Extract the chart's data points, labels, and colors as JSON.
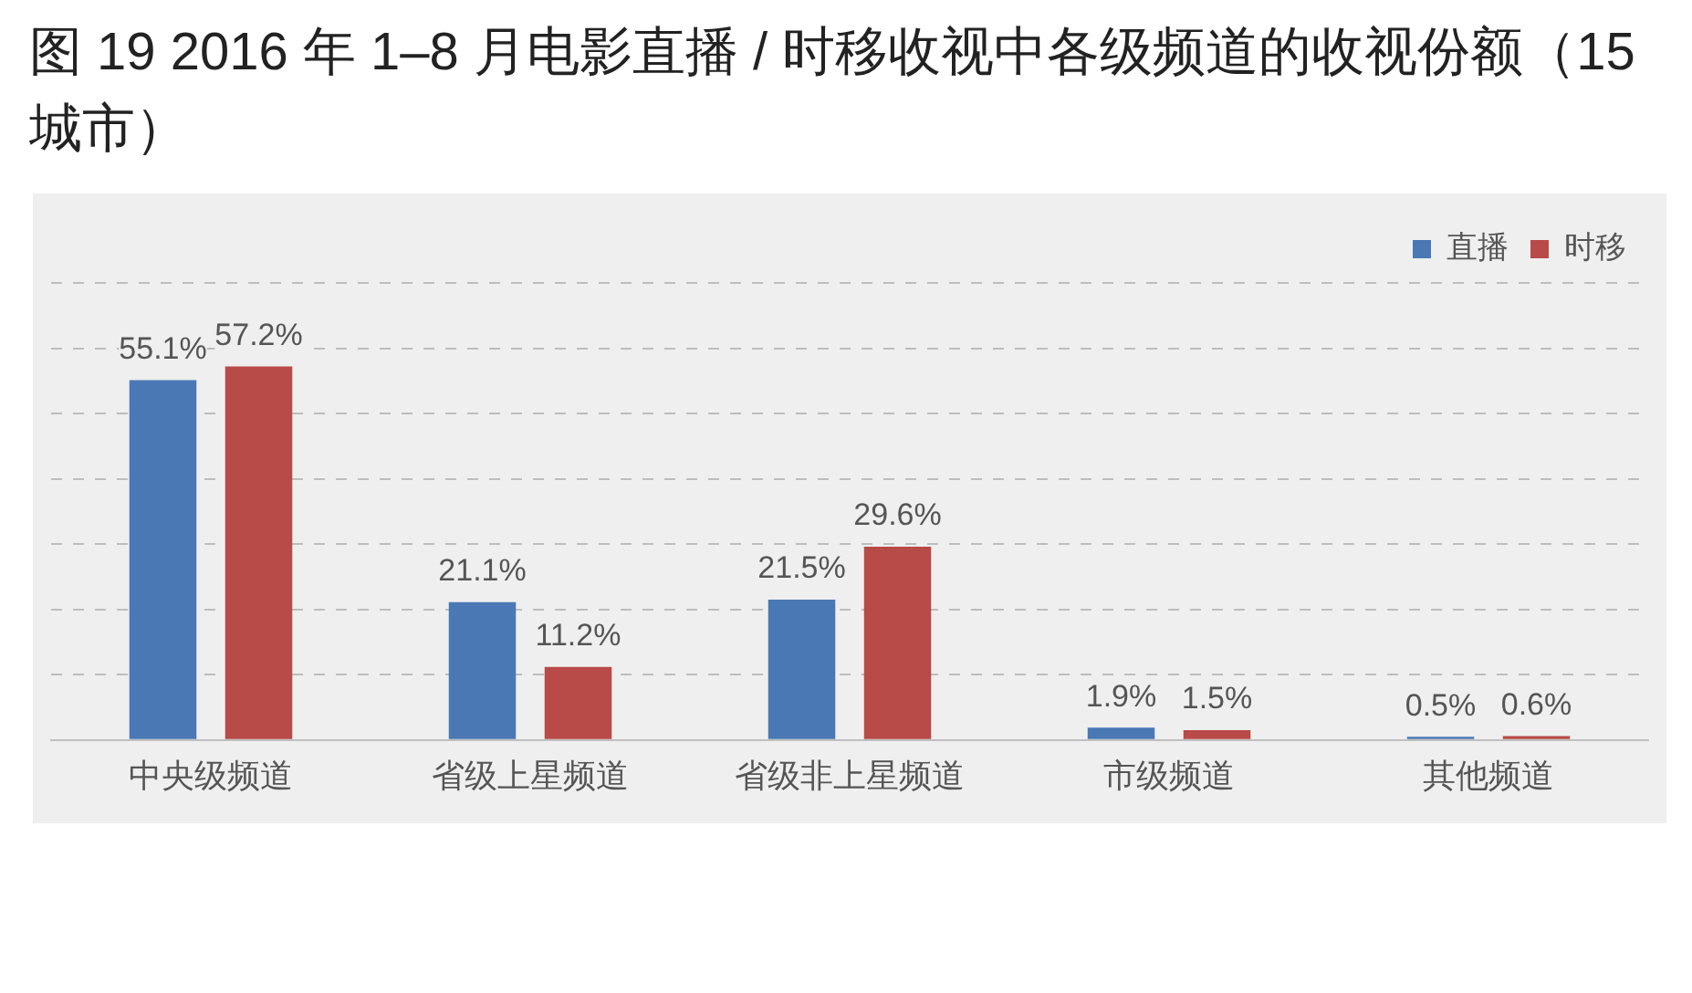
{
  "chart_data": {
    "type": "bar",
    "title": "图 19  2016 年 1–8 月电影直播 / 时移收视中各级频道的收视份额（15 城市）",
    "categories": [
      "中央级频道",
      "省级上星频道",
      "省级非上星频道",
      "市级频道",
      "其他频道"
    ],
    "series": [
      {
        "name": "直播",
        "color": "#4a78b4",
        "values": [
          55.1,
          21.1,
          21.5,
          1.9,
          0.5
        ],
        "value_labels": [
          "55.1%",
          "21.1%",
          "21.5%",
          "1.9%",
          "0.5%"
        ]
      },
      {
        "name": "时移",
        "color": "#b84a48",
        "values": [
          57.2,
          11.2,
          29.6,
          1.5,
          0.6
        ],
        "value_labels": [
          "57.2%",
          "11.2%",
          "29.6%",
          "1.5%",
          "0.6%"
        ]
      }
    ],
    "ylim": [
      0,
      70
    ],
    "yticks": [
      {
        "value": 0,
        "label": null
      },
      {
        "value": 10,
        "label": null
      },
      {
        "value": 20,
        "label": null
      },
      {
        "value": 30,
        "label": null
      },
      {
        "value": 40,
        "label": null
      },
      {
        "value": 50,
        "label": null
      },
      {
        "value": 60,
        "label": null
      },
      {
        "value": 70,
        "label": null
      }
    ],
    "grid": "y",
    "legend": "top right",
    "tick_labels": "x"
  }
}
